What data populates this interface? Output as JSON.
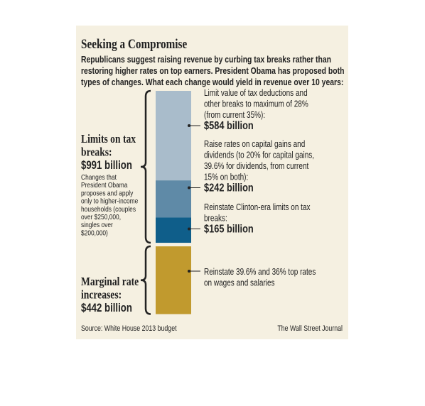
{
  "chart_data": {
    "type": "stacked-bar",
    "title": "Seeking a Compromise",
    "subtitle": [
      "Republicans suggest raising revenue by curbing tax breaks rather than",
      "restoring higher rates on top earners. President Obama has proposed both",
      "types of changes. What each change would yield in revenue over 10 years:"
    ],
    "groups": [
      {
        "label": [
          "Limits on tax",
          "breaks:"
        ],
        "total": 991,
        "total_label": "$991 billion",
        "note": [
          "Changes that",
          "President Obama",
          "proposes and apply",
          "only to higher-income",
          "households (couples",
          "over $250,000,",
          "singles over",
          "$200,000)"
        ],
        "segments": [
          {
            "description": [
              "Limit value of tax deductions and",
              "other breaks to maximum of 28%",
              "(from current 35%):"
            ],
            "value": 584,
            "value_label": "$584 billion",
            "color": "#a9bccb"
          },
          {
            "description": [
              "Raise rates on capital gains and",
              "dividends  (to 20% for capital gains,",
              "39.6% for dividends, from current",
              "15% on both):"
            ],
            "value": 242,
            "value_label": "$242 billion",
            "color": "#5f8aa7"
          },
          {
            "description": [
              "Reinstate Clinton-era limits on tax",
              "breaks:"
            ],
            "value": 165,
            "value_label": "$165 billion",
            "color": "#0f5e8a"
          }
        ]
      },
      {
        "label": [
          "Marginal rate",
          "increases:"
        ],
        "total": 442,
        "total_label": "$442 billion",
        "segments": [
          {
            "description": [
              "Reinstate 39.6% and 36% top rates",
              "on wages and salaries"
            ],
            "value": 442,
            "color": "#c19a2e"
          }
        ]
      }
    ],
    "source": "Source: White House 2013 budget",
    "credit": "The Wall Street Journal"
  }
}
